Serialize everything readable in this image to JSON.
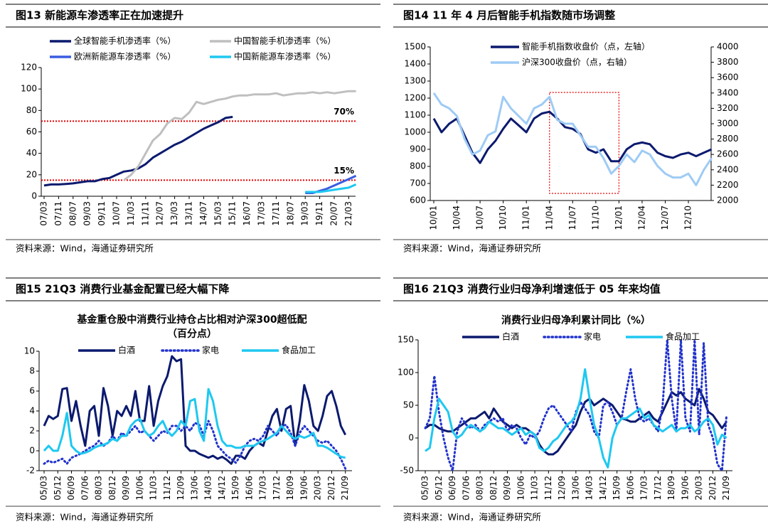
{
  "chart_data": [
    {
      "type": "line",
      "title": "图13 新能源车渗透率正在加速提升",
      "source": "资料来源：Wind，海通证券研究所",
      "categories": [
        "07/03",
        null,
        "07/11",
        null,
        "08/07",
        null,
        "09/03",
        null,
        "09/11",
        null,
        "10/07",
        null,
        "11/03",
        null,
        "11/11",
        null,
        "12/07",
        null,
        "13/03",
        null,
        "13/11",
        null,
        "14/07",
        null,
        "15/03",
        null,
        "15/11",
        null,
        "16/07",
        null,
        "17/03",
        null,
        "17/11",
        null,
        "18/07",
        null,
        "19/03",
        null,
        "19/11",
        null,
        "20/07",
        null,
        "21/03",
        null
      ],
      "series": [
        {
          "name": "全球智能手机渗透率（%）",
          "color": "#0b1a6e",
          "values": [
            10,
            11,
            11,
            11.5,
            12,
            13,
            14,
            14,
            16,
            17,
            20,
            23,
            24,
            26,
            30,
            36,
            40,
            44,
            48,
            51,
            55,
            59,
            63,
            66,
            69,
            73,
            74,
            null,
            null,
            null,
            null,
            null,
            null,
            null,
            null,
            null,
            null,
            null,
            null,
            null,
            null,
            null,
            null,
            null
          ]
        },
        {
          "name": "中国智能手机渗透率（%）",
          "color": "#bfbfbf",
          "values": [
            null,
            null,
            null,
            null,
            null,
            null,
            null,
            null,
            null,
            null,
            null,
            15,
            20,
            28,
            40,
            52,
            58,
            68,
            73,
            72,
            78,
            88,
            86,
            88,
            90,
            91,
            93,
            94,
            94,
            95,
            95,
            95,
            96,
            94,
            95,
            96,
            96,
            97,
            96,
            97,
            96,
            97,
            98,
            98
          ]
        },
        {
          "name": "欧洲新能源车渗透率（%）",
          "color": "#3a5ce0",
          "values": [
            null,
            null,
            null,
            null,
            null,
            null,
            null,
            null,
            null,
            null,
            null,
            null,
            null,
            null,
            null,
            null,
            null,
            null,
            null,
            null,
            null,
            null,
            null,
            null,
            null,
            null,
            null,
            null,
            null,
            null,
            null,
            null,
            null,
            null,
            null,
            null,
            3,
            3,
            5,
            7,
            10,
            13,
            16,
            19
          ]
        },
        {
          "name": "中国新能源车渗透率（%）",
          "color": "#1ec8f0",
          "values": [
            null,
            null,
            null,
            null,
            null,
            null,
            null,
            null,
            null,
            null,
            null,
            null,
            null,
            null,
            null,
            null,
            null,
            null,
            null,
            null,
            null,
            null,
            null,
            null,
            null,
            null,
            null,
            null,
            null,
            null,
            null,
            null,
            null,
            null,
            null,
            null,
            4,
            4,
            4,
            5,
            6,
            7,
            8,
            11
          ]
        }
      ],
      "hlines": [
        {
          "value": 70,
          "label": "70%",
          "color": "#e60000"
        },
        {
          "value": 15,
          "label": "15%",
          "color": "#e60000"
        }
      ],
      "ylim": [
        0,
        120
      ],
      "yticks": [
        0,
        20,
        40,
        60,
        80,
        100,
        120
      ]
    },
    {
      "type": "line",
      "title": "图14 11 年 4 月后智能手机指数随市场调整",
      "source": "资料来源：Wind，海通证券研究所",
      "categories": [
        "10/01",
        null,
        null,
        "10/04",
        null,
        null,
        "10/07",
        null,
        null,
        "10/10",
        null,
        null,
        "11/01",
        null,
        null,
        "11/04",
        null,
        null,
        "11/07",
        null,
        null,
        "11/10",
        null,
        null,
        "12/01",
        null,
        null,
        "12/04",
        null,
        null,
        "12/07",
        null,
        null,
        "12/10",
        null,
        null,
        null
      ],
      "series": [
        {
          "name": "智能手机指数收盘价（点，左轴）",
          "color": "#0b1a6e",
          "values": [
            1080,
            1000,
            1050,
            1080,
            980,
            880,
            820,
            900,
            950,
            1020,
            1080,
            1040,
            1000,
            1080,
            1110,
            1120,
            1080,
            1030,
            1020,
            990,
            900,
            880,
            900,
            830,
            830,
            900,
            930,
            940,
            930,
            880,
            860,
            850,
            870,
            880,
            860,
            880,
            900
          ]
        },
        {
          "name": "沪深300收盘价（点，右轴）",
          "color": "#9ecbf5",
          "axis": "y2",
          "values": [
            3400,
            3250,
            3200,
            3100,
            2800,
            2600,
            2650,
            2850,
            2900,
            3350,
            3200,
            3100,
            3000,
            3200,
            3250,
            3350,
            3050,
            3000,
            3000,
            2850,
            2700,
            2700,
            2550,
            2350,
            2450,
            2600,
            2500,
            2650,
            2600,
            2450,
            2350,
            2300,
            2300,
            2350,
            2200,
            2400,
            2550
          ]
        }
      ],
      "highlight": {
        "x": [
          "11/04",
          "12/01"
        ],
        "color": "#e60000"
      },
      "ylim": [
        600,
        1500
      ],
      "yticks": [
        600,
        700,
        800,
        900,
        1000,
        1100,
        1200,
        1300,
        1400,
        1500
      ],
      "y2lim": [
        2000,
        4000
      ],
      "y2ticks": [
        2000,
        2200,
        2400,
        2600,
        2800,
        3000,
        3200,
        3400,
        3600,
        3800,
        4000
      ]
    },
    {
      "type": "line",
      "title": "图15 21Q3 消费行业基金配置已经大幅下降",
      "source": "资料来源：Wind，海通证券研究所",
      "subtitle": [
        "基金重仓股中消费行业持仓占比相对沪深300超低配",
        "（百分点）"
      ],
      "categories": [
        "05/03",
        null,
        null,
        "05/12",
        null,
        null,
        "06/09",
        null,
        null,
        "07/06",
        null,
        null,
        "08/03",
        null,
        null,
        "08/12",
        null,
        null,
        "09/09",
        null,
        null,
        "10/06",
        null,
        null,
        "11/03",
        null,
        null,
        "11/12",
        null,
        null,
        "12/09",
        null,
        null,
        "13/06",
        null,
        null,
        "14/03",
        null,
        null,
        "14/12",
        null,
        null,
        "15/09",
        null,
        null,
        "16/06",
        null,
        null,
        "17/03",
        null,
        null,
        "17/12",
        null,
        null,
        "18/09",
        null,
        null,
        "19/06",
        null,
        null,
        "20/03",
        null,
        null,
        "20/12",
        null,
        null,
        "21/09"
      ],
      "series": [
        {
          "name": "白酒",
          "color": "#0b1a6e",
          "values": [
            2.5,
            3.5,
            3.2,
            3.5,
            6.2,
            6.3,
            3,
            5,
            2.5,
            0.5,
            4,
            4.5,
            1.5,
            6.3,
            4.5,
            1.5,
            4,
            3.5,
            4.5,
            3.5,
            6,
            3,
            3,
            6.5,
            2.5,
            5,
            6.5,
            7.5,
            9.5,
            9,
            9.2,
            0.5,
            0,
            0,
            -0.3,
            -0.5,
            -0.7,
            -0.5,
            -0.8,
            -0.6,
            -0.9,
            -1.3,
            -0.5,
            -0.5,
            -0.8,
            0,
            0.5,
            0.8,
            0.5,
            2,
            3.5,
            4.2,
            2,
            4.2,
            4.5,
            0.5,
            3,
            6.6,
            5,
            2.5,
            2,
            3.5,
            5.5,
            6,
            4.5,
            2.5,
            1.6
          ]
        },
        {
          "name": "家电",
          "color": "#2233cc",
          "style": "dotted",
          "values": [
            -1.3,
            -1.0,
            -1.2,
            -1.0,
            -0.8,
            -1.3,
            -0.7,
            -0.5,
            -0.3,
            0,
            0.3,
            0.5,
            1.0,
            0.5,
            0.8,
            1.5,
            1.0,
            1.8,
            1.5,
            2.0,
            2.5,
            1.8,
            2.0,
            1.5,
            1.0,
            1.5,
            2.0,
            1.8,
            2.5,
            2.5,
            2.0,
            2.5,
            2.0,
            2.8,
            2.6,
            1.5,
            3.0,
            2.0,
            0.5,
            0,
            -0.5,
            -0.8,
            -1.2,
            -0.5,
            0.5,
            1.0,
            1.2,
            1.0,
            1.5,
            2.5,
            2.0,
            1.5,
            2.5,
            2.6,
            1.8,
            0.5,
            1.8,
            2.5,
            2.0,
            1.5,
            1.0,
            0.8,
            1.0,
            0.5,
            0,
            -0.8,
            -1.8
          ]
        },
        {
          "name": "食品加工",
          "color": "#1ec8f0",
          "values": [
            0,
            0.5,
            0,
            0,
            1.5,
            3.8,
            0.5,
            0,
            -0.3,
            -0.2,
            0,
            0.3,
            0.5,
            0.6,
            0.8,
            1.2,
            1.0,
            1.5,
            1.5,
            2.5,
            3.0,
            3.2,
            2.0,
            1.5,
            1.8,
            2.5,
            3.0,
            2.0,
            1.5,
            2.0,
            3.0,
            2.5,
            5.0,
            5.2,
            2.0,
            1.0,
            6.2,
            5.0,
            2.5,
            1.0,
            0.5,
            0.5,
            0.3,
            0.3,
            0.5,
            0.5,
            0.5,
            0.8,
            1.0,
            1.2,
            1.5,
            1.8,
            2.5,
            2.0,
            1.5,
            1.2,
            1.5,
            1.3,
            1.5,
            1.8,
            0.5,
            0.5,
            0.3,
            0,
            -0.3,
            -0.6,
            -0.7
          ]
        }
      ],
      "ylim": [
        -2,
        10
      ],
      "yticks": [
        -2,
        0,
        2,
        4,
        6,
        8,
        10
      ]
    },
    {
      "type": "line",
      "title": "图16 21Q3 消费行业归母净利增速低于 05 年来均值",
      "source": "资料来源：Wind，海通证券研究所",
      "subtitle": [
        "消费行业归母净利累计同比（%）"
      ],
      "categories": [
        "05/03",
        null,
        null,
        "05/12",
        null,
        null,
        "06/09",
        null,
        null,
        "07/06",
        null,
        null,
        "08/03",
        null,
        null,
        "08/12",
        null,
        null,
        "09/09",
        null,
        null,
        "10/06",
        null,
        null,
        "11/03",
        null,
        null,
        "11/12",
        null,
        null,
        "12/09",
        null,
        null,
        "13/06",
        null,
        null,
        "14/03",
        null,
        null,
        "14/12",
        null,
        null,
        "15/09",
        null,
        null,
        "16/06",
        null,
        null,
        "17/03",
        null,
        null,
        "17/12",
        null,
        null,
        "18/09",
        null,
        null,
        "19/06",
        null,
        null,
        "20/03",
        null,
        null,
        "20/12",
        null,
        null,
        "21/09"
      ],
      "series": [
        {
          "name": "白酒",
          "color": "#0b1a6e",
          "values": [
            15,
            20,
            20,
            15,
            12,
            10,
            10,
            15,
            20,
            25,
            30,
            30,
            35,
            40,
            30,
            45,
            35,
            25,
            20,
            15,
            20,
            15,
            15,
            10,
            5,
            -10,
            -20,
            -25,
            -25,
            -20,
            -10,
            0,
            10,
            20,
            40,
            55,
            60,
            50,
            55,
            60,
            55,
            50,
            40,
            30,
            28,
            25,
            25,
            30,
            35,
            40,
            30,
            25,
            40,
            55,
            70,
            65,
            70,
            60,
            55,
            50,
            75,
            60,
            40,
            35,
            25,
            15,
            25
          ]
        },
        {
          "name": "家电",
          "color": "#2233cc",
          "style": "dotted",
          "values": [
            15,
            30,
            95,
            40,
            0,
            -30,
            -50,
            10,
            30,
            20,
            15,
            20,
            10,
            20,
            25,
            30,
            25,
            30,
            10,
            20,
            15,
            0,
            -10,
            5,
            0,
            10,
            30,
            45,
            50,
            40,
            30,
            20,
            10,
            40,
            55,
            45,
            35,
            10,
            0,
            50,
            55,
            40,
            20,
            30,
            70,
            105,
            60,
            30,
            25,
            30,
            20,
            10,
            50,
            150,
            60,
            10,
            150,
            30,
            10,
            150,
            5,
            145,
            20,
            0,
            -40,
            -50,
            35
          ]
        },
        {
          "name": "食品加工",
          "color": "#1ec8f0",
          "values": [
            -20,
            -15,
            30,
            60,
            50,
            40,
            10,
            0,
            5,
            15,
            20,
            15,
            10,
            15,
            25,
            20,
            15,
            15,
            10,
            5,
            10,
            15,
            5,
            10,
            5,
            -15,
            -20,
            -15,
            -5,
            0,
            10,
            20,
            25,
            35,
            60,
            105,
            60,
            20,
            0,
            -30,
            -45,
            0,
            20,
            30,
            30,
            35,
            40,
            45,
            30,
            35,
            20,
            15,
            10,
            15,
            20,
            10,
            15,
            15,
            20,
            10,
            15,
            25,
            30,
            20,
            -10,
            5,
            0
          ]
        }
      ],
      "ylim": [
        -50,
        150
      ],
      "yticks": [
        -50,
        0,
        50,
        100,
        150
      ]
    }
  ]
}
